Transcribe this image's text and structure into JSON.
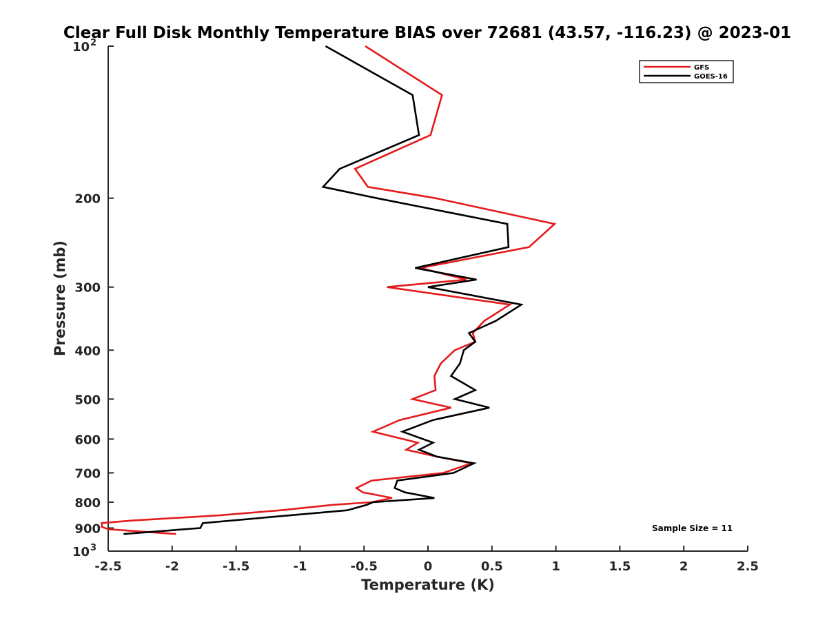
{
  "chart_data": {
    "type": "line",
    "title": "Clear Full Disk Monthly Temperature BIAS over 72681 (43.57, -116.23) @ 2023-01",
    "xlabel": "Temperature (K)",
    "ylabel": "Pressure (mb)",
    "xlim": [
      -2.5,
      2.5
    ],
    "ylim": [
      100,
      1000
    ],
    "yscale": "log",
    "y_reversed": true,
    "x_ticks": [
      -2.5,
      -2,
      -1.5,
      -1,
      -0.5,
      0,
      0.5,
      1,
      1.5,
      2,
      2.5
    ],
    "x_tick_labels": [
      "-2.5",
      "-2",
      "-1.5",
      "-1",
      "-0.5",
      "0",
      "0.5",
      "1",
      "1.5",
      "2",
      "2.5"
    ],
    "y_ticks": [
      100,
      200,
      300,
      400,
      500,
      600,
      700,
      800,
      900,
      1000
    ],
    "y_tick_labels": [
      {
        "base": "10",
        "sup": "2"
      },
      {
        "base": "200",
        "sup": ""
      },
      {
        "base": "300",
        "sup": ""
      },
      {
        "base": "400",
        "sup": ""
      },
      {
        "base": "500",
        "sup": ""
      },
      {
        "base": "600",
        "sup": ""
      },
      {
        "base": "700",
        "sup": ""
      },
      {
        "base": "800",
        "sup": ""
      },
      {
        "base": "900",
        "sup": ""
      },
      {
        "base": "10",
        "sup": "3"
      }
    ],
    "grid": false,
    "legend_position": "top-right",
    "annotation": "Sample Size = 11",
    "series": [
      {
        "name": "GFS",
        "color": "#e41a1c",
        "points": [
          [
            -0.49,
            100
          ],
          [
            0.11,
            125
          ],
          [
            0.02,
            150
          ],
          [
            -0.57,
            175
          ],
          [
            -0.47,
            190
          ],
          [
            0.06,
            200
          ],
          [
            0.99,
            225
          ],
          [
            0.79,
            250
          ],
          [
            -0.06,
            275
          ],
          [
            0.3,
            290
          ],
          [
            -0.32,
            300
          ],
          [
            0.64,
            325
          ],
          [
            0.44,
            350
          ],
          [
            0.35,
            370
          ],
          [
            0.37,
            385
          ],
          [
            0.21,
            400
          ],
          [
            0.1,
            425
          ],
          [
            0.05,
            450
          ],
          [
            0.06,
            480
          ],
          [
            -0.12,
            500
          ],
          [
            0.18,
            520
          ],
          [
            -0.22,
            550
          ],
          [
            -0.43,
            580
          ],
          [
            -0.08,
            610
          ],
          [
            -0.17,
            630
          ],
          [
            0.07,
            650
          ],
          [
            0.34,
            670
          ],
          [
            0.12,
            700
          ],
          [
            -0.44,
            725
          ],
          [
            -0.56,
            750
          ],
          [
            -0.51,
            765
          ],
          [
            -0.28,
            785
          ],
          [
            -0.44,
            800
          ],
          [
            -0.75,
            810
          ],
          [
            -1.15,
            830
          ],
          [
            -1.65,
            850
          ],
          [
            -2.32,
            870
          ],
          [
            -2.55,
            880
          ],
          [
            -2.55,
            895
          ],
          [
            -2.5,
            905
          ],
          [
            -1.97,
            925
          ]
        ]
      },
      {
        "name": "GOES-16",
        "color": "#000000",
        "points": [
          [
            -0.8,
            100
          ],
          [
            -0.12,
            125
          ],
          [
            -0.07,
            150
          ],
          [
            -0.69,
            175
          ],
          [
            -0.82,
            190
          ],
          [
            -0.4,
            200
          ],
          [
            0.62,
            225
          ],
          [
            0.63,
            250
          ],
          [
            -0.1,
            275
          ],
          [
            0.38,
            290
          ],
          [
            0.0,
            300
          ],
          [
            0.73,
            325
          ],
          [
            0.53,
            350
          ],
          [
            0.32,
            370
          ],
          [
            0.37,
            385
          ],
          [
            0.28,
            400
          ],
          [
            0.25,
            425
          ],
          [
            0.18,
            450
          ],
          [
            0.37,
            480
          ],
          [
            0.21,
            500
          ],
          [
            0.48,
            520
          ],
          [
            0.04,
            550
          ],
          [
            -0.2,
            580
          ],
          [
            0.04,
            610
          ],
          [
            -0.07,
            630
          ],
          [
            0.07,
            650
          ],
          [
            0.36,
            670
          ],
          [
            0.2,
            700
          ],
          [
            -0.24,
            725
          ],
          [
            -0.26,
            750
          ],
          [
            -0.18,
            765
          ],
          [
            0.05,
            785
          ],
          [
            -0.43,
            800
          ],
          [
            -0.48,
            810
          ],
          [
            -0.63,
            830
          ],
          [
            -1.76,
            880
          ],
          [
            -1.78,
            900
          ],
          [
            -2.38,
            925
          ]
        ]
      }
    ]
  }
}
